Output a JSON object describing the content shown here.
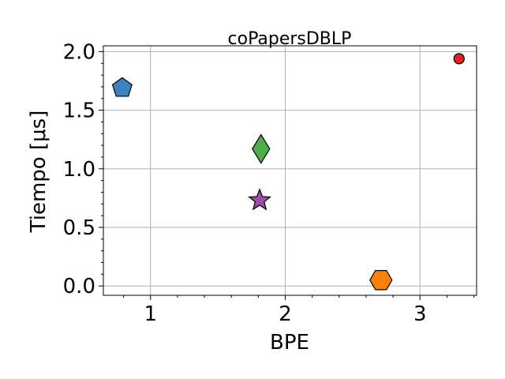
{
  "chart_data": {
    "type": "scatter",
    "title": "coPapersDBLP",
    "xlabel": "BPE",
    "ylabel": "Tiempo [μs]",
    "xlim": [
      0.65,
      3.42
    ],
    "ylim": [
      -0.08,
      2.05
    ],
    "x_ticks": [
      1,
      2,
      3
    ],
    "x_tick_labels": [
      "1",
      "2",
      "3"
    ],
    "y_ticks": [
      0.0,
      0.5,
      1.0,
      1.5,
      2.0
    ],
    "y_tick_labels": [
      "0.0",
      "0.5",
      "1.0",
      "1.5",
      "2.0"
    ],
    "grid": true,
    "points": [
      {
        "x": 0.79,
        "y": 1.69,
        "marker": "pentagon",
        "color": "#3a83c0"
      },
      {
        "x": 1.82,
        "y": 1.17,
        "marker": "diamond",
        "color": "#4fae4a"
      },
      {
        "x": 1.81,
        "y": 0.73,
        "marker": "star",
        "color": "#9a4fa8"
      },
      {
        "x": 2.71,
        "y": 0.05,
        "marker": "hexagon",
        "color": "#ff8008"
      },
      {
        "x": 3.29,
        "y": 1.94,
        "marker": "circle",
        "color": "#e32226"
      }
    ]
  }
}
